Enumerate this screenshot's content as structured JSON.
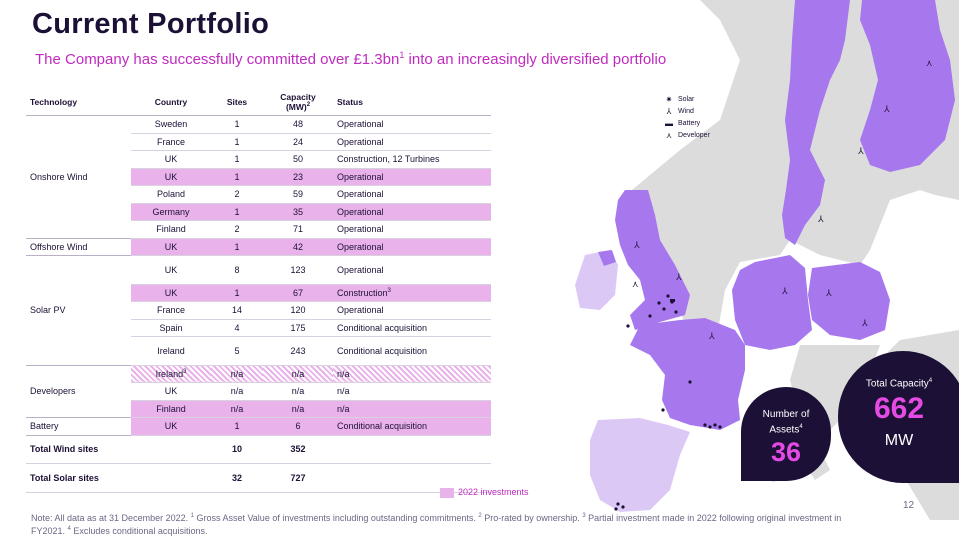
{
  "header": {
    "title": "Current Portfolio",
    "subtitle_pre": "The Company has successfully committed over £1.3bn",
    "subtitle_sup": "1",
    "subtitle_post": " into an increasingly diversified portfolio"
  },
  "table": {
    "columns": {
      "technology": "Technology",
      "country": "Country",
      "sites": "Sites",
      "capacity": "Capacity",
      "capacity_unit": "(MW)",
      "capacity_sup": "2",
      "status": "Status"
    },
    "rows": [
      {
        "country": "Sweden",
        "sites": "1",
        "capacity": "48",
        "status": "Operational"
      },
      {
        "country": "France",
        "sites": "1",
        "capacity": "24",
        "status": "Operational"
      },
      {
        "country": "UK",
        "sites": "1",
        "capacity": "50",
        "status": "Construction, 12 Turbines"
      },
      {
        "country": "UK",
        "sites": "1",
        "capacity": "23",
        "status": "Operational"
      },
      {
        "country": "Poland",
        "sites": "2",
        "capacity": "59",
        "status": "Operational"
      },
      {
        "country": "Germany",
        "sites": "1",
        "capacity": "35",
        "status": "Operational"
      },
      {
        "country": "Finland",
        "sites": "2",
        "capacity": "71",
        "status": "Operational"
      },
      {
        "country": "UK",
        "sites": "1",
        "capacity": "42",
        "status": "Operational"
      },
      {
        "country": "UK",
        "sites": "8",
        "capacity": "123",
        "status": "Operational"
      },
      {
        "country": "UK",
        "sites": "1",
        "capacity": "67",
        "status": "Construction",
        "status_sup": "3"
      },
      {
        "country": "France",
        "sites": "14",
        "capacity": "120",
        "status": "Operational"
      },
      {
        "country": "Spain",
        "sites": "4",
        "capacity": "175",
        "status": "Conditional acquisition"
      },
      {
        "country": "Ireland",
        "sites": "5",
        "capacity": "243",
        "status": "Conditional acquisition"
      },
      {
        "country": "Ireland",
        "country_sup": "3",
        "sites": "n/a",
        "capacity": "n/a",
        "status": "n/a"
      },
      {
        "country": "UK",
        "sites": "n/a",
        "capacity": "n/a",
        "status": "n/a"
      },
      {
        "country": "Finland",
        "sites": "n/a",
        "capacity": "n/a",
        "status": "n/a"
      },
      {
        "country": "UK",
        "sites": "1",
        "capacity": "6",
        "status": "Conditional acquisition"
      }
    ],
    "categories": {
      "onshore_wind": "Onshore Wind",
      "offshore_wind": "Offshore Wind",
      "solar_pv": "Solar PV",
      "developers": "Developers",
      "battery": "Battery"
    },
    "totals": [
      {
        "label": "Total Wind sites",
        "sites": "10",
        "capacity": "352"
      },
      {
        "label": "Total Solar sites",
        "sites": "32",
        "capacity": "727"
      }
    ]
  },
  "legend": {
    "label": "2022 investments",
    "color": "#e9b2ea"
  },
  "map_legend": {
    "items": [
      {
        "icon": "solar-icon",
        "label": "Solar"
      },
      {
        "icon": "wind-icon",
        "label": "Wind"
      },
      {
        "icon": "battery-icon",
        "label": "Battery"
      },
      {
        "icon": "developer-icon",
        "label": "Developer"
      }
    ]
  },
  "stats": {
    "assets_label_line1": "Number of",
    "assets_label_line2": "Assets",
    "assets_sup": "4",
    "assets_value": "36",
    "capacity_label": "Total Capacity",
    "capacity_sup": "4",
    "capacity_value": "662",
    "capacity_unit": "MW"
  },
  "footnote": {
    "text1": "Note: All data as at 31 December 2022. ",
    "sup1": "1",
    "text2": " Gross Asset Value of investments including outstanding commitments. ",
    "sup2": "2",
    "text3": " Pro-rated by ownership. ",
    "sup3": "3",
    "text4": " Partial investment made in 2022 following original investment in FY2021. ",
    "sup4": "4",
    "text5": " Excludes conditional acquisitions."
  },
  "page_number": "12",
  "colors": {
    "navy": "#1d1036",
    "magenta": "#c02bbf",
    "pink_highlight": "#e9b2ea",
    "map_purple": "#a777ee",
    "map_light": "#dcc8f5",
    "map_grey": "#dcdcdc"
  }
}
